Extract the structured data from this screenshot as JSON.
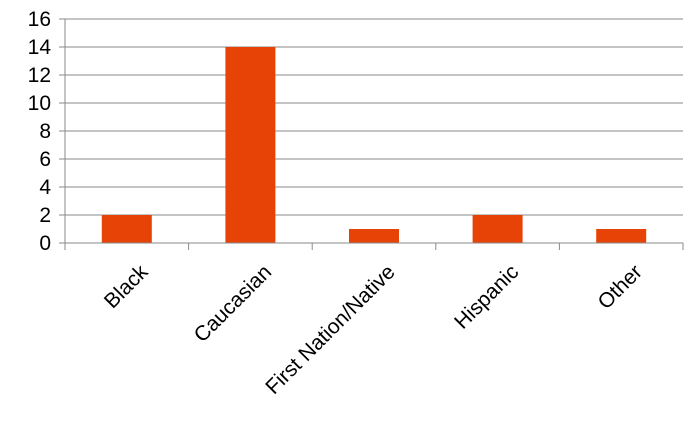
{
  "chart_data": {
    "type": "bar",
    "title": "",
    "xlabel": "",
    "ylabel": "",
    "categories": [
      "Black",
      "Caucasian",
      "First Nation/Native",
      "Hispanic",
      "Other"
    ],
    "values": [
      2,
      14,
      1,
      2,
      1
    ],
    "ylim": [
      0,
      16
    ],
    "yticks": [
      0,
      2,
      4,
      6,
      8,
      10,
      12,
      14,
      16
    ],
    "ytick_labels": [
      "0",
      "2",
      "4",
      "6",
      "8",
      "10",
      "12",
      "14",
      "16"
    ],
    "grid": true,
    "legend": "none",
    "bar_color": "#e84307",
    "grid_color": "#8a8a8a",
    "axis_color": "#8a8a8a"
  }
}
